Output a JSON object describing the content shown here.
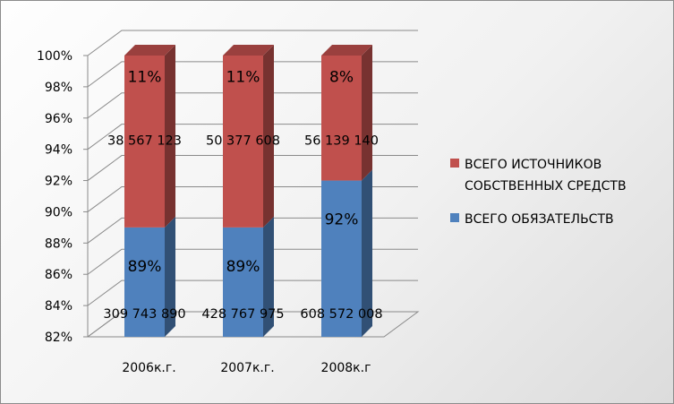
{
  "chart_data": {
    "type": "bar",
    "stacked": true,
    "percent_stacked": true,
    "view": "3d",
    "categories": [
      "2006к.г.",
      "2007к.г.",
      "2008к.г"
    ],
    "series": [
      {
        "name": "ВСЕГО ОБЯЗАТЕЛЬСТВ",
        "color": "#4f81bd",
        "percent_values": [
          89,
          89,
          92
        ],
        "percent_labels": [
          "89%",
          "89%",
          "92%"
        ],
        "amount_labels": [
          "309 743 890",
          "428 767 975",
          "608 572 008"
        ]
      },
      {
        "name": "ВСЕГО ИСТОЧНИКОВ СОБСТВЕННЫХ СРЕДСТВ",
        "color": "#c0504d",
        "percent_values": [
          11,
          11,
          8
        ],
        "percent_labels": [
          "11%",
          "11%",
          "8%"
        ],
        "amount_labels": [
          "38 567 123",
          "50 377 608",
          "56 139 140"
        ]
      }
    ],
    "y_ticks": [
      "82%",
      "84%",
      "86%",
      "88%",
      "90%",
      "92%",
      "94%",
      "96%",
      "98%",
      "100%"
    ],
    "ylim": [
      82,
      100
    ],
    "grid": true,
    "legend_position": "right",
    "legend_lines": [
      [
        "ВСЕГО ИСТОЧНИКОВ",
        "СОБСТВЕННЫХ СРЕДСТВ"
      ],
      [
        "ВСЕГО ОБЯЗАТЕЛЬСТВ"
      ]
    ]
  }
}
